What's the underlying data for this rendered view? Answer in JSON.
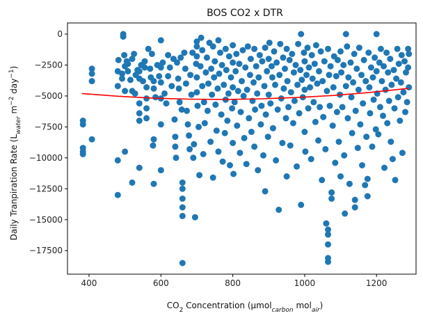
{
  "chart_data": {
    "type": "scatter",
    "title": "BOS CO2 x DTR",
    "xlabel": {
      "main": "CO",
      "sub2": "2",
      "rest": " Concentration (µmol",
      "sub_carbon": "carbon",
      "mid": " mol",
      "sub_air": "air",
      "end": ")"
    },
    "ylabel": {
      "main": "Daily Tranpiration Rate (L",
      "sub_water": "water",
      "mid": " m",
      "sup1": "−2",
      "mid2": " day",
      "sup2": "−1",
      "end": ")"
    },
    "xlim": [
      340,
      1310
    ],
    "ylim": [
      -19400,
      900
    ],
    "xticks": [
      400,
      600,
      800,
      1000,
      1200
    ],
    "yticks": [
      0,
      -2500,
      -5000,
      -7500,
      -10000,
      -12500,
      -15000,
      -17500
    ],
    "xtick_labels": [
      "400",
      "600",
      "800",
      "1000",
      "1200"
    ],
    "ytick_labels": [
      "0",
      "−2500",
      "−5000",
      "−7500",
      "−10000",
      "−12500",
      "−15000",
      "−17500"
    ],
    "point_color": "#1f77b4",
    "fit_color": "#ff0000",
    "fit_curve": {
      "x": [
        380,
        480,
        580,
        680,
        780,
        880,
        980,
        1080,
        1180,
        1290
      ],
      "y": [
        -4800,
        -5020,
        -5180,
        -5260,
        -5280,
        -5230,
        -5120,
        -4960,
        -4720,
        -4380
      ]
    },
    "points": [
      [
        383,
        -7000
      ],
      [
        383,
        -7300
      ],
      [
        383,
        -9200
      ],
      [
        383,
        -9500
      ],
      [
        383,
        -9700
      ],
      [
        408,
        -2800
      ],
      [
        408,
        -3200
      ],
      [
        408,
        -3800
      ],
      [
        408,
        -8500
      ],
      [
        480,
        -3000
      ],
      [
        480,
        -4200
      ],
      [
        480,
        -10200
      ],
      [
        480,
        -13000
      ],
      [
        482,
        -2100
      ],
      [
        492,
        -3200
      ],
      [
        492,
        -3600
      ],
      [
        495,
        0
      ],
      [
        495,
        -200
      ],
      [
        498,
        -1700
      ],
      [
        500,
        -2600
      ],
      [
        500,
        -4600
      ],
      [
        500,
        -9500
      ],
      [
        505,
        -2200
      ],
      [
        508,
        -2400
      ],
      [
        508,
        -3000
      ],
      [
        515,
        -3700
      ],
      [
        520,
        -4600
      ],
      [
        520,
        -12000
      ],
      [
        520,
        -2000
      ],
      [
        525,
        -1600
      ],
      [
        528,
        -4800
      ],
      [
        530,
        -3300
      ],
      [
        535,
        -2900
      ],
      [
        540,
        -3000
      ],
      [
        540,
        -3600
      ],
      [
        540,
        -5600
      ],
      [
        540,
        -6400
      ],
      [
        540,
        -7000
      ],
      [
        540,
        -10800
      ],
      [
        545,
        -2500
      ],
      [
        550,
        -3800
      ],
      [
        555,
        -2200
      ],
      [
        555,
        -2700
      ],
      [
        560,
        -4300
      ],
      [
        560,
        -5200
      ],
      [
        560,
        -6000
      ],
      [
        560,
        -6800
      ],
      [
        565,
        -1200
      ],
      [
        570,
        -2800
      ],
      [
        572,
        -3500
      ],
      [
        575,
        -1600
      ],
      [
        578,
        -9000
      ],
      [
        580,
        -3800
      ],
      [
        580,
        -4400
      ],
      [
        580,
        -8500
      ],
      [
        580,
        -12100
      ],
      [
        585,
        -5100
      ],
      [
        590,
        -2500
      ],
      [
        595,
        -3400
      ],
      [
        600,
        -500
      ],
      [
        600,
        -2700
      ],
      [
        600,
        -3900
      ],
      [
        600,
        -5200
      ],
      [
        600,
        -7300
      ],
      [
        600,
        -11000
      ],
      [
        605,
        -2300
      ],
      [
        610,
        -4800
      ],
      [
        615,
        -5600
      ],
      [
        620,
        -1700
      ],
      [
        620,
        -3400
      ],
      [
        625,
        -2700
      ],
      [
        630,
        -4200
      ],
      [
        635,
        -2000
      ],
      [
        638,
        -6900
      ],
      [
        640,
        -8300
      ],
      [
        640,
        -9100
      ],
      [
        642,
        -10000
      ],
      [
        645,
        -2300
      ],
      [
        648,
        -3600
      ],
      [
        650,
        -4400
      ],
      [
        652,
        -5500
      ],
      [
        655,
        -1900
      ],
      [
        658,
        -6100
      ],
      [
        660,
        -12000
      ],
      [
        660,
        -12500
      ],
      [
        660,
        -13300
      ],
      [
        660,
        -14000
      ],
      [
        660,
        -14700
      ],
      [
        660,
        -18500
      ],
      [
        665,
        -1500
      ],
      [
        668,
        -2800
      ],
      [
        670,
        -4000
      ],
      [
        672,
        -6200
      ],
      [
        675,
        -7300
      ],
      [
        678,
        -8200
      ],
      [
        680,
        -9300
      ],
      [
        682,
        -3300
      ],
      [
        685,
        -4900
      ],
      [
        688,
        -1500
      ],
      [
        690,
        -10000
      ],
      [
        692,
        -8900
      ],
      [
        695,
        -14800
      ],
      [
        698,
        -2400
      ],
      [
        700,
        -600
      ],
      [
        700,
        -1000
      ],
      [
        700,
        -1800
      ],
      [
        700,
        -3500
      ],
      [
        700,
        -4700
      ],
      [
        702,
        -5800
      ],
      [
        705,
        -7500
      ],
      [
        707,
        -11400
      ],
      [
        710,
        -2600
      ],
      [
        712,
        -300
      ],
      [
        715,
        -1300
      ],
      [
        715,
        -4200
      ],
      [
        718,
        -9700
      ],
      [
        720,
        -5500
      ],
      [
        722,
        -7200
      ],
      [
        725,
        -3100
      ],
      [
        728,
        -1900
      ],
      [
        730,
        -6200
      ],
      [
        732,
        -4000
      ],
      [
        735,
        -700
      ],
      [
        738,
        -8700
      ],
      [
        740,
        -2800
      ],
      [
        742,
        -4900
      ],
      [
        745,
        -1000
      ],
      [
        745,
        -11600
      ],
      [
        748,
        -3500
      ],
      [
        750,
        -2200
      ],
      [
        752,
        -5700
      ],
      [
        755,
        -7800
      ],
      [
        758,
        -4400
      ],
      [
        760,
        -500
      ],
      [
        760,
        -9500
      ],
      [
        762,
        -3200
      ],
      [
        765,
        -1500
      ],
      [
        768,
        -6500
      ],
      [
        770,
        -2500
      ],
      [
        772,
        -10300
      ],
      [
        775,
        -4100
      ],
      [
        778,
        -8000
      ],
      [
        780,
        -1200
      ],
      [
        780,
        -5300
      ],
      [
        782,
        -2900
      ],
      [
        785,
        -7000
      ],
      [
        788,
        -4800
      ],
      [
        790,
        -1800
      ],
      [
        792,
        -10600
      ],
      [
        795,
        -3500
      ],
      [
        798,
        -6000
      ],
      [
        800,
        -900
      ],
      [
        800,
        -2300
      ],
      [
        800,
        -4300
      ],
      [
        800,
        -8800
      ],
      [
        802,
        -11300
      ],
      [
        805,
        -5500
      ],
      [
        808,
        -3000
      ],
      [
        810,
        -1600
      ],
      [
        812,
        -7400
      ],
      [
        815,
        -4600
      ],
      [
        818,
        -2400
      ],
      [
        820,
        -9600
      ],
      [
        822,
        -6300
      ],
      [
        825,
        -3800
      ],
      [
        828,
        -1300
      ],
      [
        830,
        -5000
      ],
      [
        832,
        -8400
      ],
      [
        835,
        -2700
      ],
      [
        838,
        -10500
      ],
      [
        840,
        -4500
      ],
      [
        842,
        -1000
      ],
      [
        845,
        -6800
      ],
      [
        848,
        -3300
      ],
      [
        850,
        -2000
      ],
      [
        852,
        -7900
      ],
      [
        855,
        -5400
      ],
      [
        858,
        -3900
      ],
      [
        860,
        -1200
      ],
      [
        860,
        -9100
      ],
      [
        862,
        -6100
      ],
      [
        865,
        -2600
      ],
      [
        868,
        -4800
      ],
      [
        870,
        -11000
      ],
      [
        872,
        -3500
      ],
      [
        875,
        -1700
      ],
      [
        878,
        -7300
      ],
      [
        880,
        -5800
      ],
      [
        882,
        -2200
      ],
      [
        885,
        -9800
      ],
      [
        888,
        -4200
      ],
      [
        890,
        -1100
      ],
      [
        890,
        -12700
      ],
      [
        892,
        -6500
      ],
      [
        895,
        -3000
      ],
      [
        898,
        -8300
      ],
      [
        900,
        -2000
      ],
      [
        900,
        -4900
      ],
      [
        902,
        -700
      ],
      [
        905,
        -5600
      ],
      [
        908,
        -2600
      ],
      [
        910,
        -3500
      ],
      [
        912,
        -7600
      ],
      [
        915,
        -1400
      ],
      [
        918,
        -4100
      ],
      [
        920,
        -10200
      ],
      [
        922,
        -2300
      ],
      [
        925,
        -6100
      ],
      [
        928,
        -14200
      ],
      [
        930,
        -3300
      ],
      [
        932,
        -800
      ],
      [
        935,
        -5200
      ],
      [
        938,
        -8800
      ],
      [
        940,
        -1900
      ],
      [
        942,
        -4400
      ],
      [
        945,
        -2800
      ],
      [
        948,
        -6800
      ],
      [
        950,
        -1200
      ],
      [
        950,
        -11500
      ],
      [
        952,
        -3800
      ],
      [
        955,
        -5900
      ],
      [
        958,
        -2100
      ],
      [
        960,
        -9000
      ],
      [
        962,
        -4700
      ],
      [
        965,
        -1600
      ],
      [
        968,
        -7200
      ],
      [
        970,
        -3100
      ],
      [
        972,
        -5400
      ],
      [
        975,
        -2500
      ],
      [
        978,
        -10700
      ],
      [
        980,
        -4100
      ],
      [
        982,
        -800
      ],
      [
        985,
        -6400
      ],
      [
        988,
        -2900
      ],
      [
        990,
        0
      ],
      [
        990,
        -13800
      ],
      [
        992,
        -3700
      ],
      [
        995,
        -5100
      ],
      [
        998,
        -1500
      ],
      [
        1000,
        -2200
      ],
      [
        1000,
        -4500
      ],
      [
        1000,
        -7900
      ],
      [
        1002,
        -9500
      ],
      [
        1005,
        -3300
      ],
      [
        1008,
        -1100
      ],
      [
        1010,
        -6000
      ],
      [
        1012,
        -2700
      ],
      [
        1015,
        -4300
      ],
      [
        1018,
        -10100
      ],
      [
        1020,
        -1700
      ],
      [
        1022,
        -3600
      ],
      [
        1025,
        -5500
      ],
      [
        1028,
        -2400
      ],
      [
        1030,
        -7100
      ],
      [
        1032,
        -900
      ],
      [
        1035,
        -4000
      ],
      [
        1038,
        -8600
      ],
      [
        1040,
        -3000
      ],
      [
        1042,
        -5900
      ],
      [
        1045,
        -1400
      ],
      [
        1048,
        -11800
      ],
      [
        1050,
        -3800
      ],
      [
        1052,
        -6700
      ],
      [
        1055,
        -2200
      ],
      [
        1058,
        -9300
      ],
      [
        1060,
        -15300
      ],
      [
        1062,
        -4600
      ],
      [
        1065,
        -1200
      ],
      [
        1065,
        -15800
      ],
      [
        1065,
        -16200
      ],
      [
        1065,
        -17000
      ],
      [
        1065,
        -18100
      ],
      [
        1065,
        -18400
      ],
      [
        1068,
        -3300
      ],
      [
        1070,
        -5800
      ],
      [
        1072,
        -2600
      ],
      [
        1075,
        -12800
      ],
      [
        1075,
        -13300
      ],
      [
        1078,
        -7400
      ],
      [
        1080,
        -4300
      ],
      [
        1082,
        -1800
      ],
      [
        1085,
        -10400
      ],
      [
        1088,
        -3400
      ],
      [
        1090,
        -6300
      ],
      [
        1092,
        -2100
      ],
      [
        1095,
        -8700
      ],
      [
        1098,
        -4900
      ],
      [
        1100,
        -1400
      ],
      [
        1100,
        -11500
      ],
      [
        1102,
        -3100
      ],
      [
        1105,
        -5900
      ],
      [
        1108,
        -2500
      ],
      [
        1110,
        -9800
      ],
      [
        1112,
        -14500
      ],
      [
        1115,
        0
      ],
      [
        1115,
        -4200
      ],
      [
        1118,
        -1000
      ],
      [
        1120,
        -6800
      ],
      [
        1122,
        -3500
      ],
      [
        1125,
        -12100
      ],
      [
        1128,
        -2300
      ],
      [
        1130,
        -5100
      ],
      [
        1132,
        -8000
      ],
      [
        1135,
        -3900
      ],
      [
        1138,
        -1600
      ],
      [
        1140,
        -13400
      ],
      [
        1140,
        -14000
      ],
      [
        1142,
        -6200
      ],
      [
        1145,
        -2800
      ],
      [
        1148,
        -9200
      ],
      [
        1150,
        -4500
      ],
      [
        1152,
        -1100
      ],
      [
        1155,
        -7300
      ],
      [
        1158,
        -3300
      ],
      [
        1160,
        -10600
      ],
      [
        1162,
        -5600
      ],
      [
        1165,
        -2100
      ],
      [
        1168,
        -12200
      ],
      [
        1170,
        -3800
      ],
      [
        1172,
        -8300
      ],
      [
        1175,
        -11700
      ],
      [
        1175,
        -13100
      ],
      [
        1178,
        -1500
      ],
      [
        1180,
        -4300
      ],
      [
        1182,
        -6400
      ],
      [
        1185,
        -2700
      ],
      [
        1188,
        -9100
      ],
      [
        1190,
        -3500
      ],
      [
        1192,
        -5300
      ],
      [
        1195,
        -1900
      ],
      [
        1198,
        -7700
      ],
      [
        1200,
        0
      ],
      [
        1200,
        -3000
      ],
      [
        1202,
        -4800
      ],
      [
        1205,
        -8100
      ],
      [
        1208,
        -2300
      ],
      [
        1210,
        -5900
      ],
      [
        1212,
        -1200
      ],
      [
        1215,
        -3800
      ],
      [
        1218,
        -6600
      ],
      [
        1220,
        -2600
      ],
      [
        1222,
        -10800
      ],
      [
        1225,
        -4500
      ],
      [
        1228,
        -1500
      ],
      [
        1230,
        -7200
      ],
      [
        1232,
        -3100
      ],
      [
        1235,
        -5400
      ],
      [
        1238,
        -2000
      ],
      [
        1240,
        -8700
      ],
      [
        1242,
        -4100
      ],
      [
        1245,
        -10100
      ],
      [
        1248,
        -2900
      ],
      [
        1250,
        -6000
      ],
      [
        1252,
        -11800
      ],
      [
        1255,
        -3600
      ],
      [
        1258,
        -1200
      ],
      [
        1260,
        -5100
      ],
      [
        1262,
        -2400
      ],
      [
        1265,
        -7000
      ],
      [
        1268,
        -3900
      ],
      [
        1270,
        -1700
      ],
      [
        1272,
        -9600
      ],
      [
        1275,
        -4700
      ],
      [
        1278,
        -2200
      ],
      [
        1280,
        -6300
      ],
      [
        1282,
        -3100
      ],
      [
        1285,
        -5500
      ],
      [
        1288,
        -1200
      ],
      [
        1288,
        -2700
      ],
      [
        1290,
        -1600
      ],
      [
        1290,
        -4300
      ]
    ]
  }
}
